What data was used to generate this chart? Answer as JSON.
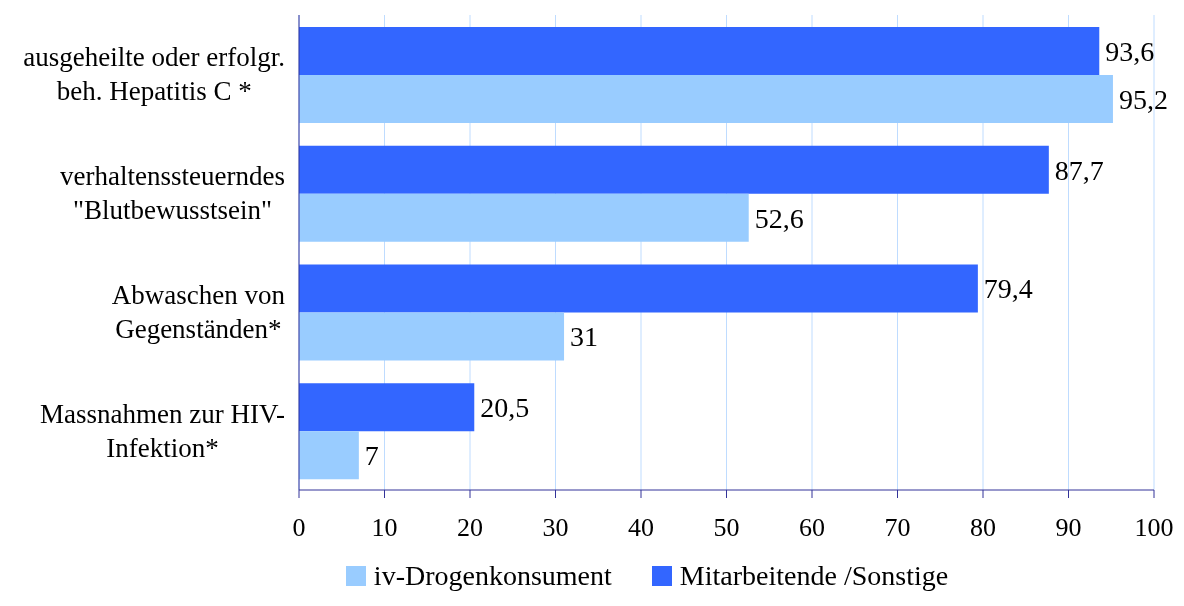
{
  "chart_data": {
    "type": "bar",
    "orientation": "horizontal",
    "categories": [
      "ausgeheilte oder erfolgr.\nbeh. Hepatitis C *",
      "verhaltenssteuerndes\n\"Blutbewusstsein\"",
      "Abwaschen von\nGegenständen*",
      "Massnahmen zur HIV-\nInfektion*"
    ],
    "series": [
      {
        "name": "iv-Drogenkonsument",
        "color": "#99ccff",
        "values": [
          95.2,
          52.6,
          31,
          7
        ],
        "value_labels": [
          "95,2",
          "52,6",
          "31",
          "7"
        ]
      },
      {
        "name": "Mitarbeitende /Sonstige",
        "color": "#3366ff",
        "values": [
          93.6,
          87.7,
          79.4,
          20.5
        ],
        "value_labels": [
          "93,6",
          "87,7",
          "79,4",
          "20,5"
        ]
      }
    ],
    "xlim": [
      0,
      100
    ],
    "xticks": [
      0,
      10,
      20,
      30,
      40,
      50,
      60,
      70,
      80,
      90,
      100
    ],
    "grid": "x",
    "legend": "bottom"
  }
}
